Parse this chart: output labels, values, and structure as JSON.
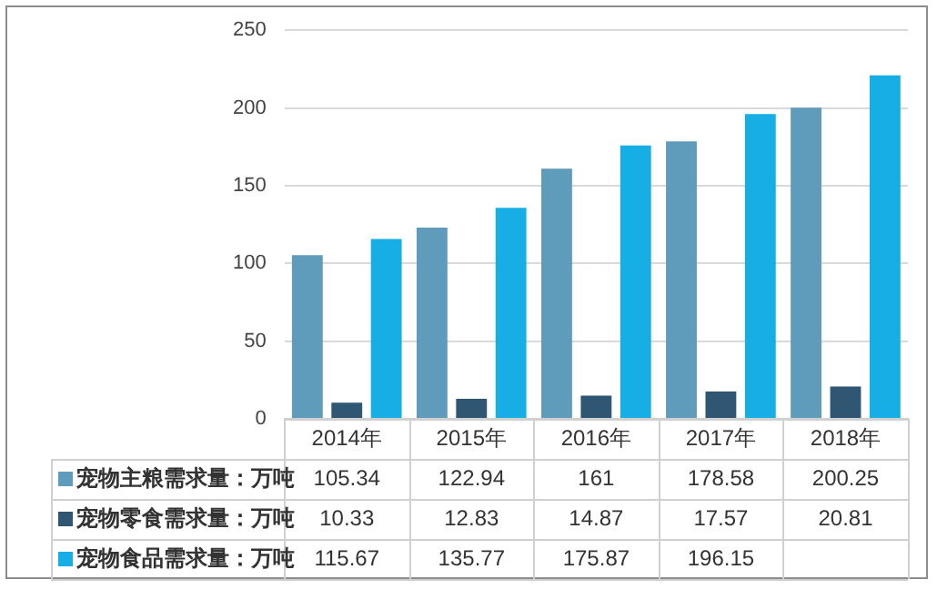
{
  "chart_data": {
    "type": "bar",
    "categories": [
      "2014年",
      "2015年",
      "2016年",
      "2017年",
      "2018年"
    ],
    "series": [
      {
        "name": "宠物主粮需求量：万吨",
        "color": "#5f9bbb",
        "values": [
          105.34,
          122.94,
          161,
          178.58,
          200.25
        ],
        "value_labels": [
          "105.34",
          "122.94",
          "161",
          "178.58",
          "200.25"
        ]
      },
      {
        "name": "宠物零食需求量：万吨",
        "color": "#2f5774",
        "values": [
          10.33,
          12.83,
          14.87,
          17.57,
          20.81
        ],
        "value_labels": [
          "10.33",
          "12.83",
          "14.87",
          "17.57",
          "20.81"
        ]
      },
      {
        "name": "宠物食品需求量：万吨",
        "color": "#17aee6",
        "values": [
          115.67,
          135.77,
          175.87,
          196.15,
          221
        ],
        "value_labels": [
          "115.67",
          "135.77",
          "175.87",
          "196.15",
          null
        ]
      }
    ],
    "ylim": [
      0,
      250
    ],
    "yticks": [
      0,
      50,
      100,
      150,
      200,
      250
    ],
    "grid": "y",
    "legend": "bottom"
  }
}
